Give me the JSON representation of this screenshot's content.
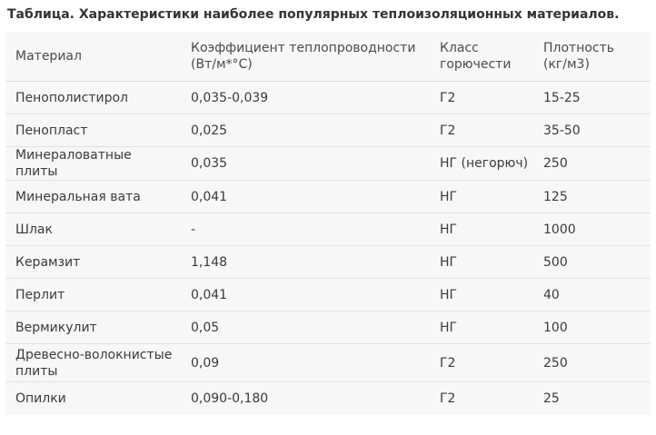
{
  "caption": "Таблица. Характеристики наиболее популярных теплоизоляционных материалов.",
  "table": {
    "headers": [
      {
        "line1": "Материал",
        "line2": ""
      },
      {
        "line1": "Коэффициент теплопроводности",
        "line2": "(Вт/м*°С)"
      },
      {
        "line1": "Класс",
        "line2": "горючести"
      },
      {
        "line1": "Плотность",
        "line2": "(кг/м3)"
      }
    ],
    "rows": [
      {
        "material": "Пенополистирол",
        "conductivity": "0,035-0,039",
        "flammability": "Г2",
        "density": "15-25"
      },
      {
        "material": "Пенопласт",
        "conductivity": "0,025",
        "flammability": "Г2",
        "density": "35-50"
      },
      {
        "material": "Минераловатные плиты",
        "conductivity": "0,035",
        "flammability": "НГ (негорюч)",
        "density": "250"
      },
      {
        "material": "Минеральная вата",
        "conductivity": "0,041",
        "flammability": "НГ",
        "density": "125"
      },
      {
        "material": "Шлак",
        "conductivity": "-",
        "flammability": "НГ",
        "density": "1000"
      },
      {
        "material": "Керамзит",
        "conductivity": "1,148",
        "flammability": "НГ",
        "density": "500"
      },
      {
        "material": "Перлит",
        "conductivity": "0,041",
        "flammability": "НГ",
        "density": "40"
      },
      {
        "material": "Вермикулит",
        "conductivity": "0,05",
        "flammability": "НГ",
        "density": "100"
      },
      {
        "material": "Древесно-волокнистые плиты",
        "conductivity": "0,09",
        "flammability": "Г2",
        "density": "250"
      },
      {
        "material": "Опилки",
        "conductivity": "0,090-0,180",
        "flammability": "Г2",
        "density": "25"
      }
    ]
  }
}
